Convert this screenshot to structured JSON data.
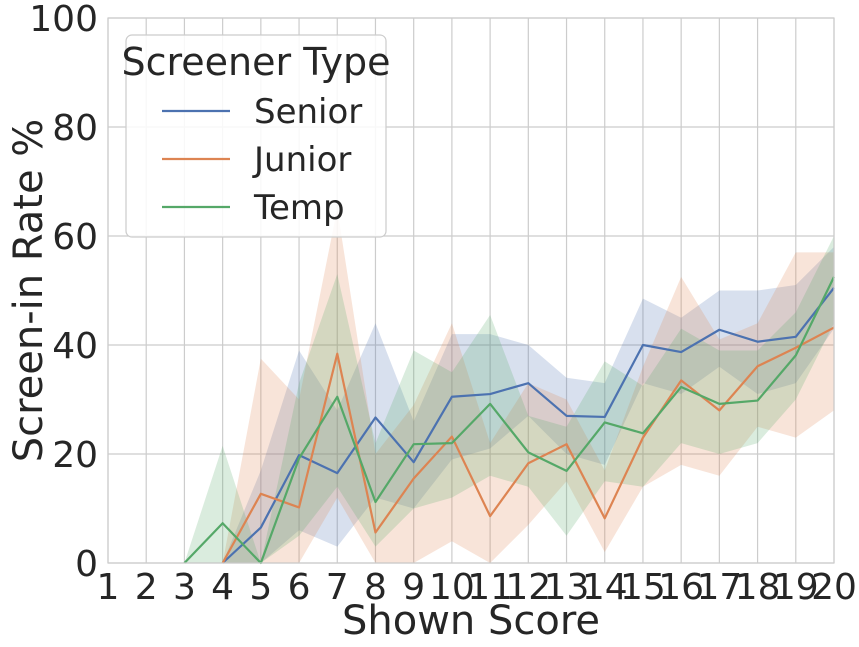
{
  "chart_data": {
    "type": "line",
    "xlabel": "Shown Score",
    "ylabel": "Screen-in Rate %",
    "x": [
      1,
      2,
      3,
      4,
      5,
      6,
      7,
      8,
      9,
      10,
      11,
      12,
      13,
      14,
      15,
      16,
      17,
      18,
      19,
      20
    ],
    "xlim": [
      1,
      20
    ],
    "ylim": [
      0,
      100
    ],
    "yticks": [
      0,
      20,
      40,
      60,
      80,
      100
    ],
    "grid": true,
    "legend": {
      "title": "Screener Type",
      "placement": "top-left"
    },
    "series": [
      {
        "name": "Senior",
        "color": "#4c72b0",
        "x": [
          4,
          5,
          6,
          7,
          8,
          9,
          10,
          11,
          12,
          13,
          14,
          15,
          16,
          17,
          18,
          19,
          20
        ],
        "values": [
          0,
          6.5,
          19.8,
          16.5,
          26.7,
          18.5,
          30.5,
          31,
          33,
          27,
          26.8,
          40,
          38.7,
          42.8,
          40.6,
          41.5,
          50.5
        ],
        "lower": [
          0,
          0,
          6,
          3,
          12,
          10,
          19,
          21,
          27,
          20,
          18,
          33,
          31,
          36,
          31,
          33,
          43
        ],
        "upper": [
          0,
          17,
          39,
          28,
          44,
          26,
          42,
          42,
          40,
          34,
          33,
          48.5,
          45,
          50,
          50,
          51,
          58
        ]
      },
      {
        "name": "Junior",
        "color": "#dd8452",
        "x": [
          4,
          5,
          6,
          7,
          8,
          9,
          10,
          11,
          12,
          13,
          14,
          15,
          16,
          17,
          18,
          19,
          20
        ],
        "values": [
          0,
          12.7,
          10.2,
          38.4,
          5.6,
          15.5,
          23.2,
          8.6,
          18.3,
          21.8,
          8.2,
          23,
          33.5,
          28,
          36.1,
          39.5,
          43.2
        ],
        "lower": [
          0,
          0,
          0,
          12,
          0,
          0,
          4,
          0,
          7,
          15,
          2,
          14,
          18,
          16,
          25,
          23,
          28
        ],
        "upper": [
          0,
          37.5,
          30,
          65,
          20,
          29,
          44,
          22,
          33,
          30,
          17,
          36,
          52.5,
          41,
          44,
          57,
          57
        ]
      },
      {
        "name": "Temp",
        "color": "#55a868",
        "x": [
          3,
          4,
          5,
          6,
          7,
          8,
          9,
          10,
          11,
          12,
          13,
          14,
          15,
          16,
          17,
          18,
          19,
          20
        ],
        "values": [
          0,
          7.3,
          0,
          19.2,
          30.5,
          11.2,
          21.8,
          22,
          29.2,
          20.3,
          16.9,
          25.8,
          23.8,
          32.3,
          29.2,
          29.8,
          38.1,
          52.5
        ],
        "lower": [
          0,
          0,
          0,
          5,
          14,
          3,
          10,
          12,
          16,
          14,
          5,
          15,
          14,
          22,
          20,
          22,
          30,
          44
        ],
        "upper": [
          0,
          21.5,
          0,
          33,
          53,
          22,
          39,
          35,
          45.5,
          27,
          25,
          37,
          32.5,
          43,
          39,
          39,
          46,
          60
        ]
      }
    ]
  }
}
